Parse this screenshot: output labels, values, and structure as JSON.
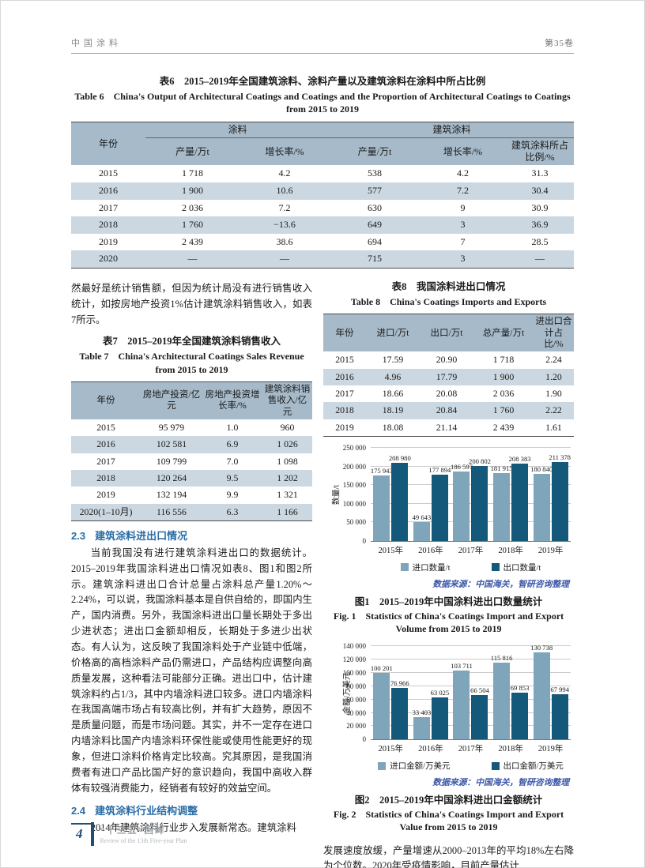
{
  "colors": {
    "accent_blue": "#2a6da5",
    "table_header_bg": "#a6bac9",
    "table_stripe_bg": "#ccd8e1",
    "source_note_blue": "#3b57a8",
    "footer_blue": "#1f4e79"
  },
  "header": {
    "journal": "中国涂料",
    "volume": "第35卷"
  },
  "table6": {
    "title_zh": "表6　2015–2019年全国建筑涂料、涂料产量以及建筑涂料在涂料中所占比例",
    "title_en": "Table 6　China's Output of Architectural Coatings and Coatings and the Proportion of Architectural Coatings to Coatings from 2015 to 2019",
    "col_year": "年份",
    "group_coatings": "涂料",
    "group_arch": "建筑涂料",
    "sub": [
      "产量/万t",
      "增长率/%",
      "产量/万t",
      "增长率/%",
      "建筑涂料所占比例/%"
    ],
    "rows": [
      [
        "2015",
        "1 718",
        "4.2",
        "538",
        "4.2",
        "31.3"
      ],
      [
        "2016",
        "1 900",
        "10.6",
        "577",
        "7.2",
        "30.4"
      ],
      [
        "2017",
        "2 036",
        "7.2",
        "630",
        "9",
        "30.9"
      ],
      [
        "2018",
        "1 760",
        "−13.6",
        "649",
        "3",
        "36.9"
      ],
      [
        "2019",
        "2 439",
        "38.6",
        "694",
        "7",
        "28.5"
      ],
      [
        "2020",
        "—",
        "—",
        "715",
        "3",
        "—"
      ]
    ]
  },
  "left": {
    "para1": "然最好是统计销售额，但因为统计局没有进行销售收入统计，如按房地产投资1%估计建筑涂料销售收入，如表7所示。",
    "sec23": {
      "num": "2.3",
      "title": "建筑涂料进出口情况"
    },
    "para2": "当前我国没有进行建筑涂料进出口的数据统计。2015–2019年我国涂料进出口情况如表8、图1和图2所示。建筑涂料进出口合计总量占涂料总产量1.20%～2.24%，可以说，我国涂料基本是自供自给的，即国内生产，国内消费。另外，我国涂料进出口量长期处于多出少进状态；进出口金额却相反，长期处于多进少出状态。有人认为，这反映了我国涂料处于产业链中低端，价格高的高档涂料产品仍需进口，产品结构应调整向高质量发展，这种看法可能部分正确。进出口中，估计建筑涂料约占1/3，其中内墙涂料进口较多。进口内墙涂料在我国高端市场占有较高比例，并有扩大趋势，原因不是质量问题，而是市场问题。其实，并不一定存在进口内墙涂料比国产内墙涂料环保性能或使用性能更好的现象，但进口涂料价格肯定比较高。究其原因，是我国消费者有进口产品比国产好的意识趋向，我国中高收入群体有较强消费能力，经销者有较好的效益空间。",
    "sec24": {
      "num": "2.4",
      "title": "建筑涂料行业结构调整"
    },
    "para3": "2014年建筑涂料行业步入发展新常态。建筑涂料"
  },
  "table7": {
    "title_zh": "表7　2015–2019年全国建筑涂料销售收入",
    "title_en": "Table 7　China's Architectural Coatings Sales Revenue from 2015 to 2019",
    "headers": [
      "年份",
      "房地产投资/亿元",
      "房地产投资增长率/%",
      "建筑涂料销售收入/亿元"
    ],
    "rows": [
      [
        "2015",
        "95 979",
        "1.0",
        "960"
      ],
      [
        "2016",
        "102 581",
        "6.9",
        "1 026"
      ],
      [
        "2017",
        "109 799",
        "7.0",
        "1 098"
      ],
      [
        "2018",
        "120 264",
        "9.5",
        "1 202"
      ],
      [
        "2019",
        "132 194",
        "9.9",
        "1 321"
      ],
      [
        "2020(1–10月)",
        "116 556",
        "6.3",
        "1 166"
      ]
    ]
  },
  "table8": {
    "title_zh": "表8　我国涂料进出口情况",
    "title_en": "Table 8　China's Coatings Imports and Exports",
    "headers": [
      "年份",
      "进口/万t",
      "出口/万t",
      "总产量/万t",
      "进出口合计占比/%"
    ],
    "rows": [
      [
        "2015",
        "17.59",
        "20.90",
        "1 718",
        "2.24"
      ],
      [
        "2016",
        "4.96",
        "17.79",
        "1 900",
        "1.20"
      ],
      [
        "2017",
        "18.66",
        "20.08",
        "2 036",
        "1.90"
      ],
      [
        "2018",
        "18.19",
        "20.84",
        "1 760",
        "2.22"
      ],
      [
        "2019",
        "18.08",
        "21.14",
        "2 439",
        "1.61"
      ]
    ]
  },
  "chart_data": [
    {
      "type": "bar",
      "title": "图1　2015–2019年中国涂料进出口数量统计",
      "title_en": "Fig. 1　Statistics of China's Coatings Import and Export Volume from 2015 to 2019",
      "categories": [
        "2015年",
        "2016年",
        "2017年",
        "2018年",
        "2019年"
      ],
      "series": [
        {
          "name": "进口数量/t",
          "color": "#7fa5ba",
          "values": [
            175943,
            49643,
            186597,
            181915,
            180840
          ],
          "labels": [
            "175 943",
            "49 643",
            "186 597",
            "181 915",
            "180 840"
          ]
        },
        {
          "name": "出口数量/t",
          "color": "#14587a",
          "values": [
            208980,
            177894,
            200802,
            208383,
            211378
          ],
          "labels": [
            "208 980",
            "177 894",
            "200 802",
            "208 383",
            "211 378"
          ]
        }
      ],
      "ylabel": "数量/t",
      "ylim": [
        0,
        250000
      ],
      "yticks": [
        {
          "v": 0,
          "label": "0"
        },
        {
          "v": 50000,
          "label": "50 000"
        },
        {
          "v": 100000,
          "label": "100 000"
        },
        {
          "v": 150000,
          "label": "150 000"
        },
        {
          "v": 200000,
          "label": "200 000"
        },
        {
          "v": 250000,
          "label": "250 000"
        }
      ],
      "grid": true,
      "legend_position": "bottom",
      "source_note": "数据来源：中国海关，智研咨询整理"
    },
    {
      "type": "bar",
      "title": "图2　2015–2019年中国涂料进出口金额统计",
      "title_en": "Fig. 2　Statistics of China's Coatings Import and Export Value from 2015 to 2019",
      "categories": [
        "2015年",
        "2016年",
        "2017年",
        "2018年",
        "2019年"
      ],
      "series": [
        {
          "name": "进口金额/万美元",
          "color": "#7fa5ba",
          "values": [
            100201,
            33403,
            103711,
            115816,
            130738
          ],
          "labels": [
            "100 201",
            "33 403",
            "103 711",
            "115 816",
            "130 738"
          ]
        },
        {
          "name": "出口金额/万美元",
          "color": "#14587a",
          "values": [
            76966,
            63025,
            66504,
            69853,
            67994
          ],
          "labels": [
            "76 966",
            "63 025",
            "66 504",
            "69 853",
            "67 994"
          ]
        }
      ],
      "ylabel": "金额/万美元",
      "ylim": [
        0,
        140000
      ],
      "yticks": [
        {
          "v": 0,
          "label": "0"
        },
        {
          "v": 20000,
          "label": "20 000"
        },
        {
          "v": 40000,
          "label": "40 000"
        },
        {
          "v": 60000,
          "label": "60 000"
        },
        {
          "v": 80000,
          "label": "80 000"
        },
        {
          "v": 100000,
          "label": "100 000"
        },
        {
          "v": 120000,
          "label": "120 000"
        },
        {
          "v": 140000,
          "label": "140 000"
        }
      ],
      "grid": true,
      "legend_position": "bottom",
      "source_note": "数据来源：中国海关，智研咨询整理"
    }
  ],
  "right": {
    "para": "发展速度放缓，产量增速从2000–2013年的平均18%左右降为个位数。2020年受疫情影响，目前产量估计"
  },
  "footer": {
    "page_number": "4",
    "slogan_zh": "“十三五”回眸",
    "slogan_en": "Review of the 13th Five-year Plan"
  }
}
